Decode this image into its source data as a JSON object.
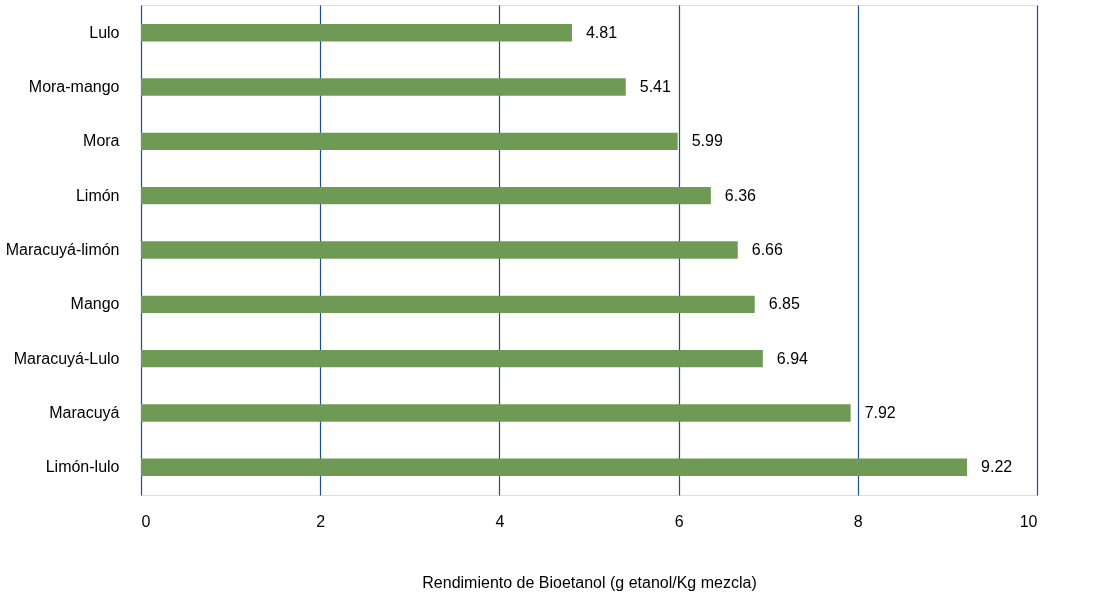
{
  "chart_data": {
    "type": "bar",
    "orientation": "horizontal",
    "xlabel": "Rendimiento de Bioetanol (g etanol/Kg mezcla)",
    "categories": [
      "Lulo",
      "Mora-mango",
      "Mora",
      "Limón",
      "Maracuyá-limón",
      "Mango",
      "Maracuyá-Lulo",
      "Maracuyá",
      "Limón-lulo"
    ],
    "values": [
      4.81,
      5.41,
      5.99,
      6.36,
      6.66,
      6.85,
      6.94,
      7.92,
      9.22
    ],
    "color": "#6f9a55",
    "xlim": [
      0,
      10
    ],
    "xticks": [
      0,
      2,
      4,
      6,
      8,
      10
    ],
    "grid": "x",
    "data_labels": true
  }
}
